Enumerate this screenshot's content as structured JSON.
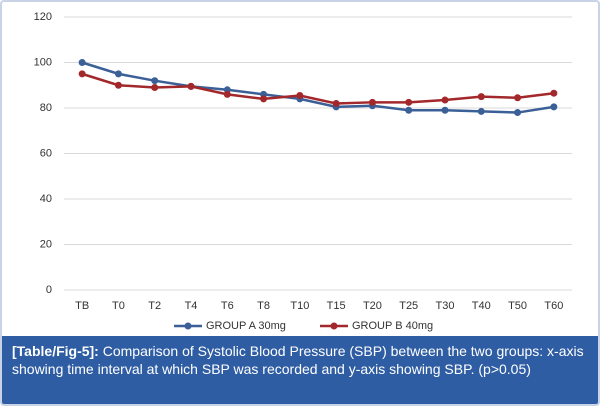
{
  "chart_data": {
    "type": "line",
    "categories": [
      "TB",
      "T0",
      "T2",
      "T4",
      "T6",
      "T8",
      "T10",
      "T15",
      "T20",
      "T25",
      "T30",
      "T40",
      "T50",
      "T60"
    ],
    "series": [
      {
        "name": "GROUP A 30mg",
        "color": "#3b5f97",
        "values": [
          100,
          95,
          92,
          89.5,
          88,
          86,
          84,
          80.5,
          81,
          79,
          79,
          78.5,
          78,
          80.5
        ]
      },
      {
        "name": "GROUP B 40mg",
        "color": "#a3282b",
        "values": [
          95,
          90,
          89,
          89.5,
          86,
          84,
          85.5,
          82,
          82.5,
          82.5,
          83.5,
          85,
          84.5,
          86.5
        ]
      }
    ],
    "ylim": [
      0,
      120
    ],
    "yticks": [
      0,
      20,
      40,
      60,
      80,
      100,
      120
    ],
    "grid": true,
    "legend": "bottom"
  },
  "caption": {
    "label": "[Table/Fig-5]:",
    "text": "Comparison of Systolic Blood Pressure (SBP) between the two groups: x-axis showing time interval at which SBP was recorded and y-axis showing SBP. (p>0.05)"
  }
}
